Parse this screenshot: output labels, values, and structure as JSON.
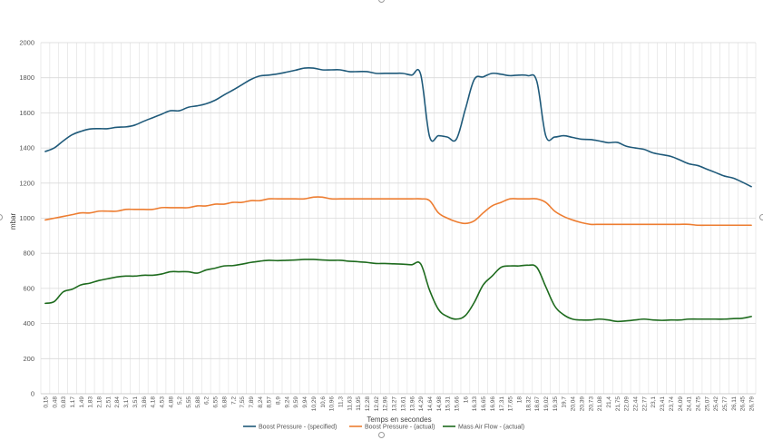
{
  "chart_data": {
    "type": "line",
    "title": "",
    "xlabel": "Temps en secondes",
    "ylabel": "mbar",
    "ylim": [
      0,
      2000
    ],
    "ytick_step": 200,
    "grid": true,
    "legend_position": "bottom",
    "x_tick_labels": [
      "0,15",
      "0,48",
      "0,83",
      "1,17",
      "1,49",
      "1,83",
      "2,18",
      "2,51",
      "2,84",
      "3,17",
      "3,51",
      "3,86",
      "4,18",
      "4,53",
      "4,88",
      "5,2",
      "5,55",
      "5,88",
      "6,2",
      "6,55",
      "6,88",
      "7,2",
      "7,55",
      "7,89",
      "8,24",
      "8,57",
      "8,9",
      "9,24",
      "9,59",
      "9,94",
      "10,29",
      "10,6",
      "10,96",
      "11,3",
      "11,63",
      "11,95",
      "12,28",
      "12,62",
      "12,96",
      "13,27",
      "13,61",
      "13,96",
      "14,29",
      "14,64",
      "14,98",
      "15,31",
      "15,66",
      "16",
      "16,33",
      "16,65",
      "16,96",
      "17,31",
      "17,65",
      "18",
      "18,32",
      "18,67",
      "19,02",
      "19,35",
      "19,7",
      "20,04",
      "20,39",
      "20,73",
      "21,08",
      "21,4",
      "21,75",
      "22,09",
      "22,44",
      "22,77",
      "23,1",
      "23,41",
      "23,74",
      "24,09",
      "24,41",
      "24,75",
      "25,07",
      "25,42",
      "25,77",
      "26,11",
      "26,45",
      "26,79"
    ],
    "series": [
      {
        "name": "Boost Pressure - (specified)",
        "color": "#1f5a7a",
        "values": [
          1380,
          1400,
          1440,
          1475,
          1495,
          1508,
          1510,
          1510,
          1518,
          1520,
          1530,
          1552,
          1572,
          1592,
          1612,
          1612,
          1632,
          1640,
          1652,
          1672,
          1702,
          1730,
          1760,
          1790,
          1810,
          1815,
          1822,
          1832,
          1843,
          1855,
          1855,
          1845,
          1845,
          1845,
          1835,
          1835,
          1835,
          1825,
          1825,
          1825,
          1825,
          1815,
          1820,
          1465,
          1470,
          1462,
          1450,
          1620,
          1790,
          1805,
          1825,
          1820,
          1812,
          1815,
          1812,
          1780,
          1470,
          1462,
          1470,
          1460,
          1450,
          1448,
          1440,
          1430,
          1432,
          1410,
          1400,
          1392,
          1372,
          1362,
          1352,
          1332,
          1310,
          1300,
          1280,
          1260,
          1240,
          1228,
          1205,
          1180
        ]
      },
      {
        "name": "Boost Pressure - (actual)",
        "color": "#ed7d31",
        "values": [
          990,
          1000,
          1010,
          1020,
          1030,
          1030,
          1040,
          1040,
          1040,
          1050,
          1050,
          1050,
          1050,
          1060,
          1060,
          1060,
          1060,
          1070,
          1070,
          1080,
          1080,
          1090,
          1090,
          1100,
          1100,
          1110,
          1110,
          1110,
          1110,
          1110,
          1120,
          1120,
          1110,
          1110,
          1110,
          1110,
          1110,
          1110,
          1110,
          1110,
          1110,
          1110,
          1110,
          1100,
          1030,
          1000,
          980,
          970,
          985,
          1030,
          1070,
          1090,
          1110,
          1110,
          1110,
          1110,
          1090,
          1040,
          1010,
          990,
          975,
          965,
          965,
          965,
          965,
          965,
          965,
          965,
          965,
          965,
          965,
          965,
          965,
          960,
          960,
          960,
          960,
          960,
          960,
          960
        ]
      },
      {
        "name": "Mass Air Flow - (actual)",
        "color": "#1e6b1e",
        "values": [
          515,
          525,
          580,
          595,
          620,
          630,
          645,
          655,
          665,
          670,
          670,
          675,
          675,
          682,
          695,
          695,
          695,
          687,
          705,
          715,
          728,
          730,
          738,
          748,
          755,
          760,
          758,
          760,
          762,
          765,
          765,
          762,
          760,
          760,
          755,
          752,
          748,
          742,
          742,
          740,
          738,
          735,
          740,
          590,
          480,
          440,
          425,
          445,
          520,
          620,
          670,
          720,
          728,
          728,
          732,
          720,
          610,
          500,
          450,
          425,
          420,
          420,
          425,
          420,
          412,
          415,
          420,
          425,
          420,
          418,
          420,
          420,
          425,
          425,
          425,
          425,
          425,
          428,
          430,
          440
        ]
      }
    ]
  }
}
